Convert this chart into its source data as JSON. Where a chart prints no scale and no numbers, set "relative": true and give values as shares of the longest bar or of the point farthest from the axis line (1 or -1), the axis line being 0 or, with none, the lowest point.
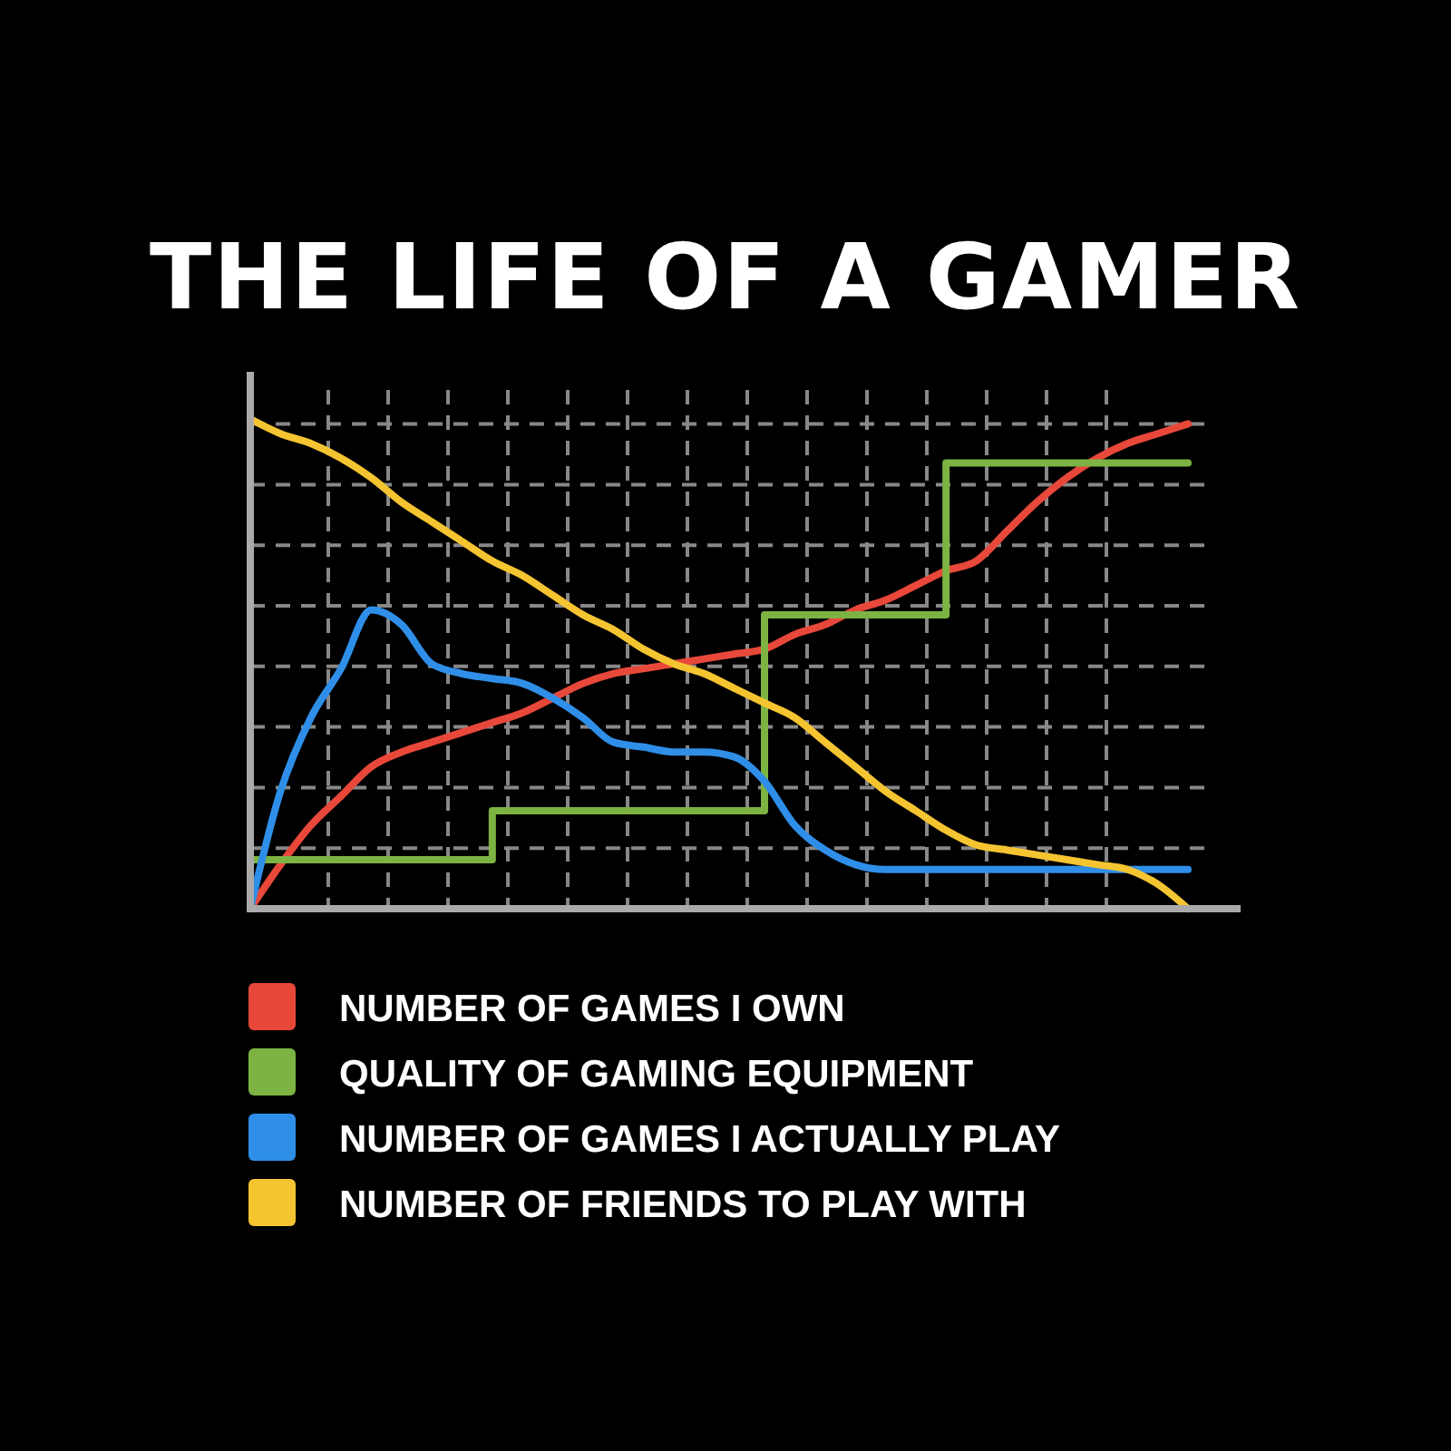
{
  "chart_data": {
    "type": "line",
    "title": "THE LIFE OF A GAMER",
    "relative": true,
    "grid": true,
    "legend": "bottom",
    "marker": "none",
    "line_style": "solid",
    "categories": [
      null,
      null,
      null,
      null,
      null,
      null,
      null,
      null,
      null,
      null,
      null,
      null,
      null,
      null,
      null,
      null,
      null,
      null,
      null,
      null,
      null,
      null,
      null,
      null,
      null,
      null,
      null,
      null,
      null,
      null,
      null,
      null
    ],
    "series": [
      {
        "name": "NUMBER OF GAMES I OWN",
        "color": "#e8483a",
        "values": [
          0,
          0.09,
          0.17,
          0.23,
          0.29,
          0.32,
          0.34,
          0.36,
          0.38,
          0.4,
          0.43,
          0.46,
          0.48,
          0.49,
          0.5,
          0.51,
          0.52,
          0.53,
          0.56,
          0.58,
          0.61,
          0.63,
          0.66,
          0.69,
          0.71,
          0.77,
          0.83,
          0.88,
          0.92,
          0.95,
          0.97,
          0.99
        ]
      },
      {
        "name": "QUALITY OF GAMING EQUIPMENT",
        "type": "step",
        "color": "#7cb342",
        "values": [
          0.1,
          0.1,
          0.1,
          0.1,
          0.1,
          0.1,
          0.1,
          0.1,
          0.2,
          0.2,
          0.2,
          0.2,
          0.2,
          0.2,
          0.2,
          0.2,
          0.2,
          0.6,
          0.6,
          0.6,
          0.6,
          0.6,
          0.6,
          0.91,
          0.91,
          0.91,
          0.91,
          0.91,
          0.91,
          0.91,
          0.91,
          0.91
        ]
      },
      {
        "name": "NUMBER OF GAMES I ACTUALLY PLAY",
        "color": "#2f8fe8",
        "values": [
          0,
          0.24,
          0.39,
          0.49,
          0.61,
          0.58,
          0.5,
          0.48,
          0.47,
          0.46,
          0.43,
          0.39,
          0.34,
          0.33,
          0.32,
          0.32,
          0.31,
          0.26,
          0.17,
          0.12,
          0.09,
          0.08,
          0.08,
          0.08,
          0.08,
          0.08,
          0.08,
          0.08,
          0.08,
          0.08,
          0.08,
          0.08
        ]
      },
      {
        "name": "NUMBER OF FRIENDS TO PLAY WITH",
        "color": "#f5c431",
        "values": [
          1.0,
          0.97,
          0.95,
          0.92,
          0.88,
          0.83,
          0.79,
          0.75,
          0.71,
          0.68,
          0.64,
          0.6,
          0.57,
          0.53,
          0.5,
          0.48,
          0.45,
          0.42,
          0.39,
          0.34,
          0.29,
          0.24,
          0.2,
          0.16,
          0.13,
          0.12,
          0.11,
          0.1,
          0.09,
          0.08,
          0.05,
          0.0
        ]
      }
    ]
  }
}
